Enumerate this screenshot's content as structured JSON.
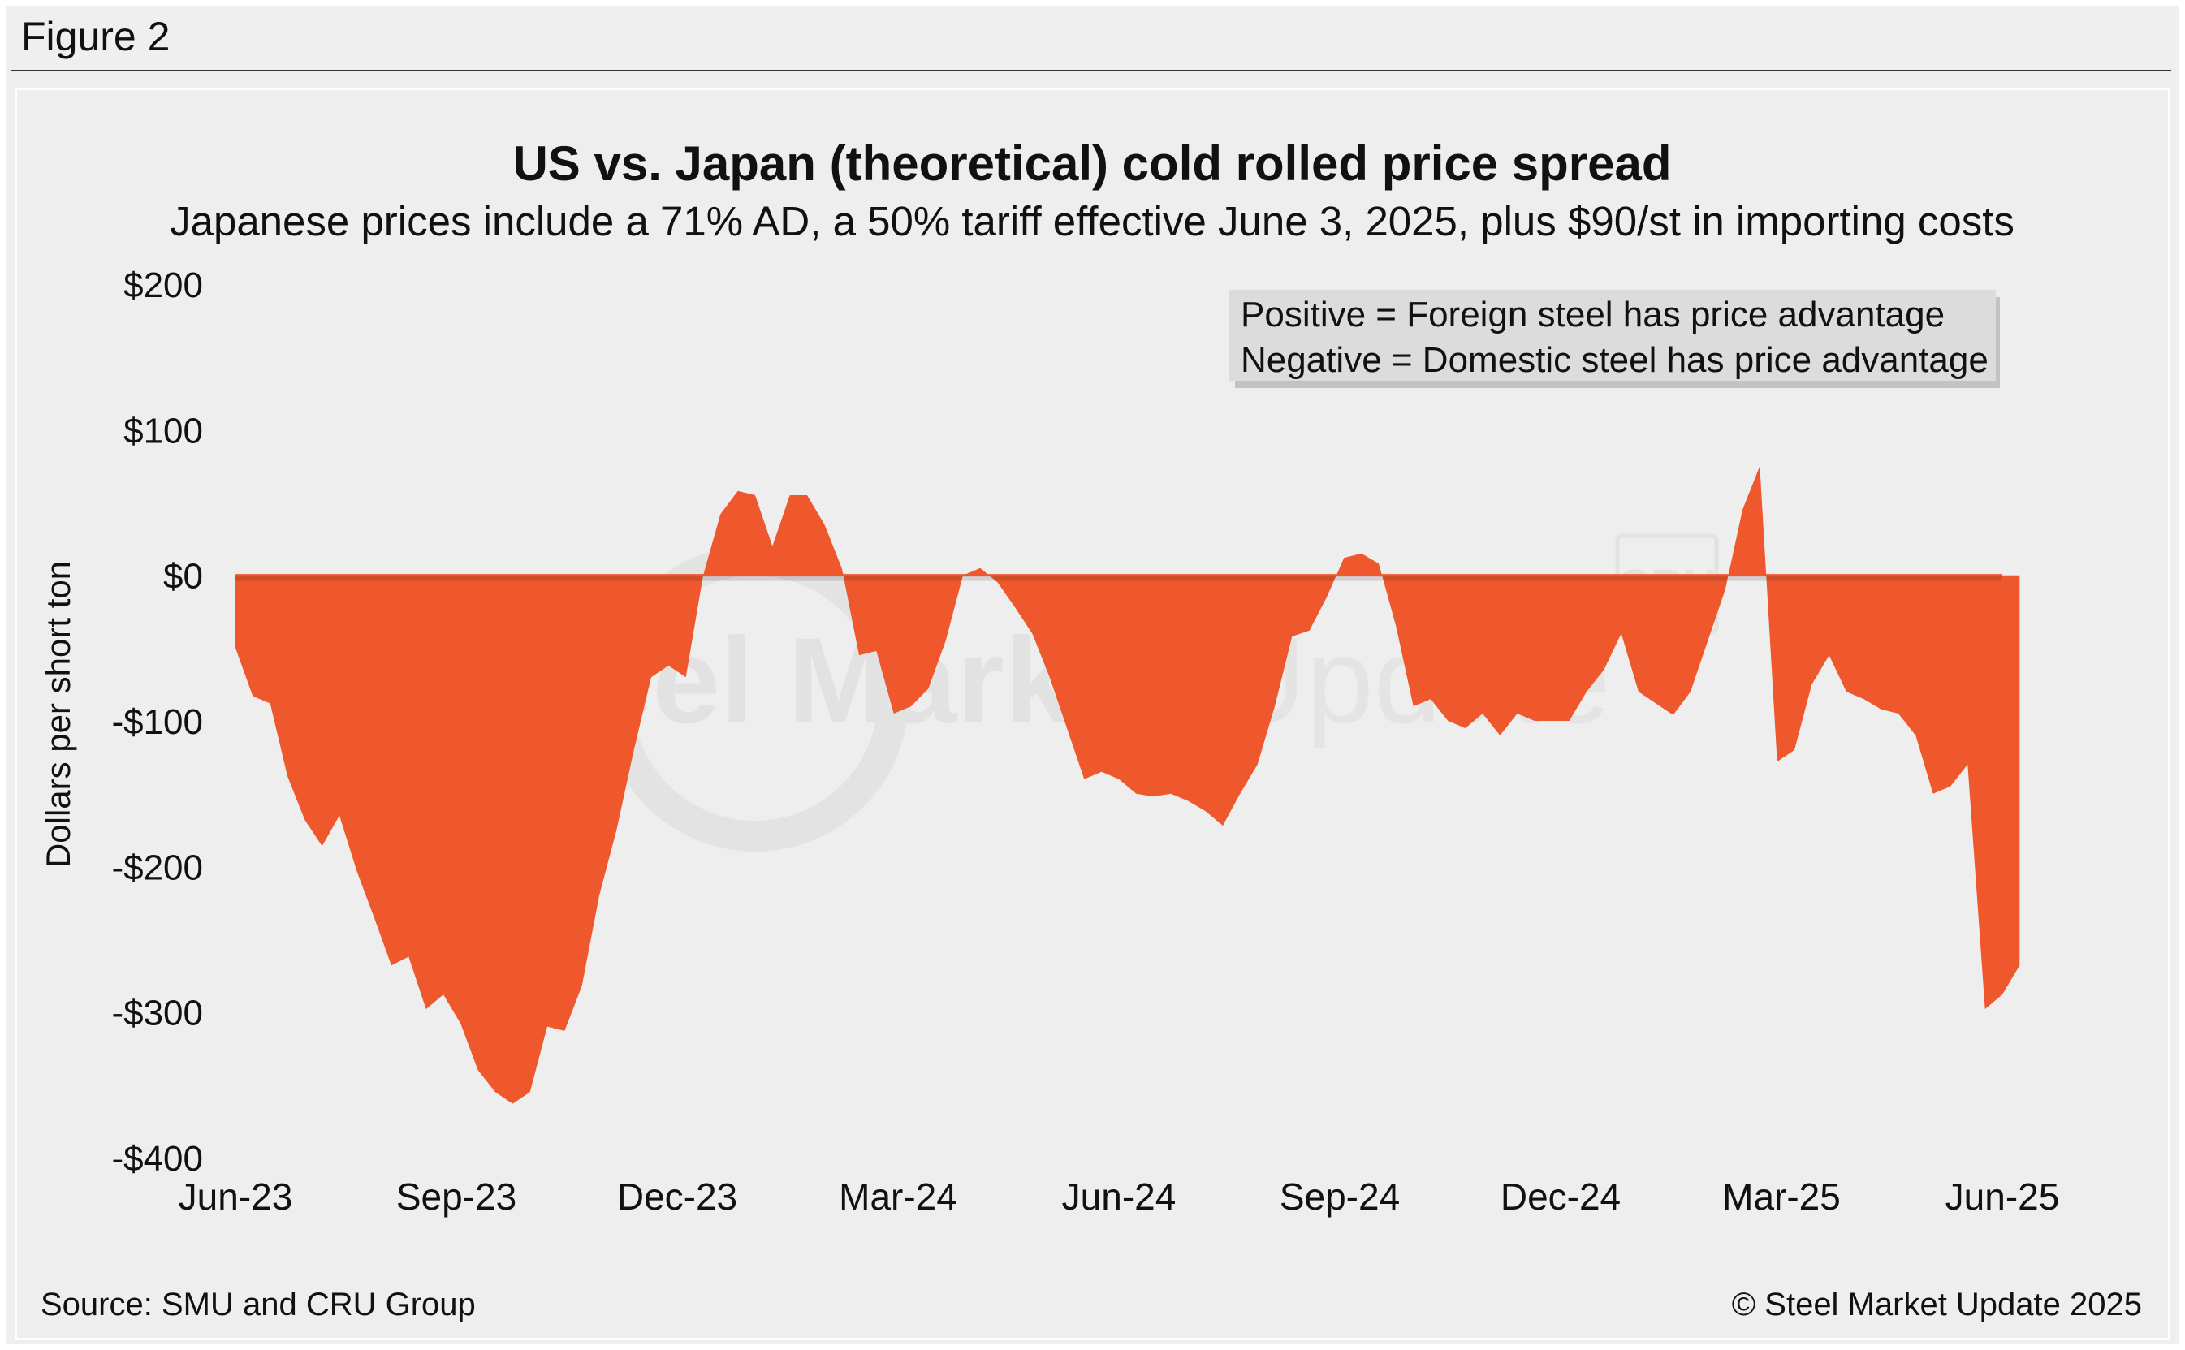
{
  "figure_label": "Figure 2",
  "source": "Source: SMU and CRU Group",
  "copyright": "© Steel Market Update 2025",
  "watermark": {
    "text_bold": "Steel Market",
    "text_light": "Update",
    "badge": "CRU"
  },
  "colors": {
    "fill": "#ee582c",
    "background": "#eeeeee",
    "legend_bg": "#dcdcdc"
  },
  "chart_data": {
    "type": "area",
    "title": "US vs. Japan (theoretical) cold rolled price spread",
    "subtitle": "Japanese prices include a 71% AD, a 50% tariff effective June 3, 2025, plus $90/st in importing costs",
    "ylabel": "Dollars per short ton",
    "xlabel": "",
    "ylim": [
      -400,
      200
    ],
    "yticks": [
      200,
      100,
      0,
      -100,
      -200,
      -300,
      -400
    ],
    "ytick_labels": [
      "$200",
      "$100",
      "$0",
      "-$100",
      "-$200",
      "-$300",
      "-$400"
    ],
    "xtick_labels": [
      "Jun-23",
      "Sep-23",
      "Dec-23",
      "Mar-24",
      "Jun-24",
      "Sep-24",
      "Dec-24",
      "Mar-25",
      "Jun-25"
    ],
    "x_unit": "weeks since Jun-23",
    "xlim": [
      0,
      104
    ],
    "xtick_positions": [
      0,
      12.75,
      25.5,
      38.25,
      51,
      63.75,
      76.5,
      89.25,
      102
    ],
    "legend_lines": [
      "Positive = Foreign steel has price advantage",
      "Negative = Domestic steel has price advantage"
    ],
    "legend_placement": "top-right",
    "series": [
      {
        "name": "Price spread",
        "x": [
          0,
          1,
          2,
          3,
          4,
          5,
          6,
          7,
          8,
          9,
          10,
          11,
          12,
          13,
          14,
          15,
          16,
          17,
          18,
          19,
          20,
          21,
          22,
          23,
          24,
          25,
          26,
          27,
          28,
          29,
          30,
          31,
          32,
          33,
          34,
          35,
          36,
          37,
          38,
          39,
          40,
          41,
          42,
          43,
          44,
          45,
          46,
          47,
          48,
          49,
          50,
          51,
          52,
          53,
          54,
          55,
          56,
          57,
          58,
          59,
          60,
          61,
          62,
          63,
          64,
          65,
          66,
          67,
          68,
          69,
          70,
          71,
          72,
          73,
          74,
          75,
          76,
          77,
          78,
          79,
          80,
          81,
          82,
          83,
          84,
          85,
          86,
          87,
          88,
          89,
          90,
          91,
          92,
          93,
          94,
          95,
          96,
          97,
          98,
          99,
          100,
          101,
          102,
          103,
          104
        ],
        "values": [
          -50,
          -83,
          -88,
          -138,
          -168,
          -186,
          -165,
          -203,
          -235,
          -268,
          -262,
          -298,
          -288,
          -308,
          -340,
          -355,
          -363,
          -355,
          -310,
          -313,
          -282,
          -220,
          -175,
          -120,
          -70,
          -62,
          -70,
          0,
          42,
          58,
          55,
          20,
          55,
          55,
          35,
          5,
          -55,
          -52,
          -95,
          -90,
          -78,
          -45,
          0,
          5,
          -5,
          -22,
          -40,
          -70,
          -105,
          -140,
          -135,
          -140,
          -150,
          -152,
          -150,
          -155,
          -162,
          -172,
          -150,
          -130,
          -90,
          -42,
          -38,
          -15,
          12,
          15,
          8,
          -35,
          -90,
          -85,
          -100,
          -105,
          -95,
          -110,
          -95,
          -100,
          -100,
          -100,
          -80,
          -65,
          -40,
          -80,
          -88,
          -96,
          -80,
          -45,
          -10,
          45,
          75,
          -128,
          -120,
          -75,
          -55,
          -80,
          -85,
          -92,
          -95,
          -110,
          -150,
          -145,
          -130,
          -298,
          -288,
          -268,
          null
        ]
      }
    ]
  }
}
